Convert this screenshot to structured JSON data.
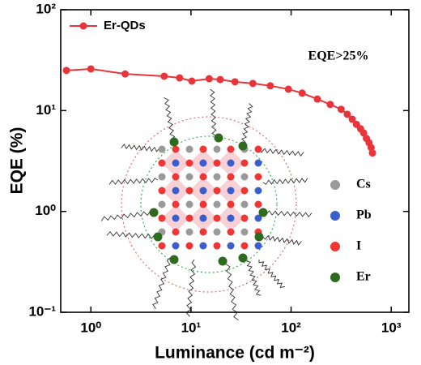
{
  "chart_data": {
    "type": "line",
    "x_label": "Luminance (cd m⁻²)",
    "y_label": "EQE (%)",
    "x_scale": "log",
    "y_scale": "log",
    "xlim": [
      0.5,
      1500
    ],
    "ylim": [
      0.1,
      100
    ],
    "xticks": [
      {
        "value": 1,
        "label": "10⁰"
      },
      {
        "value": 10,
        "label": "10¹"
      },
      {
        "value": 100,
        "label": "10²"
      },
      {
        "value": 1000,
        "label": "10³"
      }
    ],
    "yticks": [
      {
        "value": 0.1,
        "label": "10⁻¹"
      },
      {
        "value": 1,
        "label": "10⁰"
      },
      {
        "value": 10,
        "label": "10¹"
      },
      {
        "value": 100,
        "label": "10²"
      }
    ],
    "x": [
      0.57,
      1.0,
      2.2,
      5.4,
      7.7,
      10.2,
      15.2,
      19.6,
      27.5,
      41.5,
      62,
      94,
      129,
      183,
      246,
      316,
      364,
      408,
      450,
      494,
      530,
      565,
      600,
      630,
      650
    ],
    "series": [
      {
        "name": "Er-QDs",
        "color": "#e8343a",
        "values": [
          25,
          25.9,
          23.1,
          21.9,
          21.1,
          19.6,
          20.7,
          20.3,
          19.3,
          18.6,
          17.6,
          16.3,
          14.9,
          13.0,
          11.5,
          10.3,
          9.2,
          8.2,
          7.3,
          6.6,
          6.0,
          5.3,
          4.8,
          4.3,
          3.8
        ]
      }
    ],
    "legend": "upper left",
    "annotation": "EQE>25%",
    "inset_legend": [
      {
        "name": "Cs",
        "color": "#9a9a9a"
      },
      {
        "name": "Pb",
        "color": "#3a5fcd"
      },
      {
        "name": "I",
        "color": "#f03535"
      },
      {
        "name": "Er",
        "color": "#2f6b1e"
      }
    ]
  }
}
